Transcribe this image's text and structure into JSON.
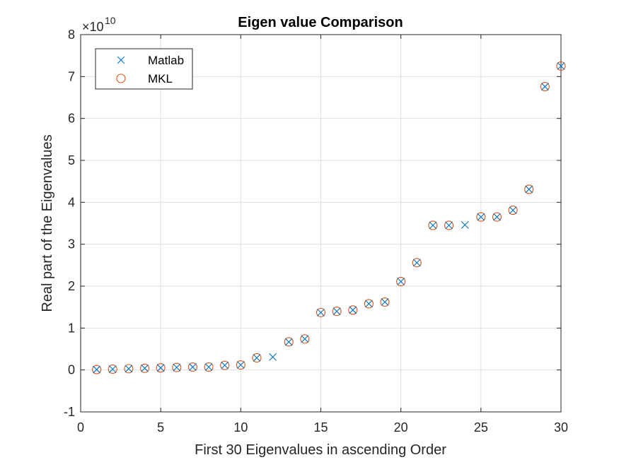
{
  "chart_data": {
    "type": "scatter",
    "title": "Eigen value Comparison",
    "xlabel": "First 30 Eigenvalues in ascending Order",
    "ylabel": "Real part of the Eigenvalues",
    "xlim": [
      0,
      30
    ],
    "ylim": [
      -1,
      8
    ],
    "y_exponent_label": "×10",
    "y_exponent_power": "10",
    "y_multiplier": 10000000000,
    "xticks": [
      "0",
      "5",
      "10",
      "15",
      "20",
      "25",
      "30"
    ],
    "yticks": [
      "-1",
      "0",
      "1",
      "2",
      "3",
      "4",
      "5",
      "6",
      "7",
      "8"
    ],
    "grid": true,
    "legend_position": "top-left",
    "series": [
      {
        "name": "Matlab",
        "marker": "x",
        "color": "#0072BD",
        "x": [
          1,
          2,
          3,
          4,
          5,
          6,
          7,
          8,
          9,
          10,
          11,
          12,
          13,
          14,
          15,
          16,
          17,
          18,
          19,
          20,
          21,
          22,
          23,
          24,
          25,
          26,
          27,
          28,
          29,
          30
        ],
        "y": [
          0.01,
          0.02,
          0.03,
          0.04,
          0.05,
          0.06,
          0.07,
          0.07,
          0.11,
          0.12,
          0.29,
          0.31,
          0.67,
          0.74,
          1.37,
          1.4,
          1.43,
          1.58,
          1.62,
          2.11,
          2.56,
          3.45,
          3.45,
          3.46,
          3.65,
          3.65,
          3.81,
          4.31,
          6.76,
          7.25
        ]
      },
      {
        "name": "MKL",
        "marker": "o",
        "color": "#D95319",
        "x": [
          1,
          2,
          3,
          4,
          5,
          6,
          7,
          8,
          9,
          10,
          11,
          13,
          14,
          15,
          16,
          17,
          18,
          19,
          20,
          21,
          22,
          23,
          25,
          26,
          27,
          28,
          29,
          30
        ],
        "y": [
          0.01,
          0.02,
          0.03,
          0.04,
          0.05,
          0.06,
          0.07,
          0.07,
          0.11,
          0.12,
          0.29,
          0.67,
          0.74,
          1.37,
          1.4,
          1.43,
          1.58,
          1.62,
          2.11,
          2.56,
          3.45,
          3.45,
          3.65,
          3.65,
          3.81,
          4.31,
          6.76,
          7.25
        ]
      }
    ]
  }
}
